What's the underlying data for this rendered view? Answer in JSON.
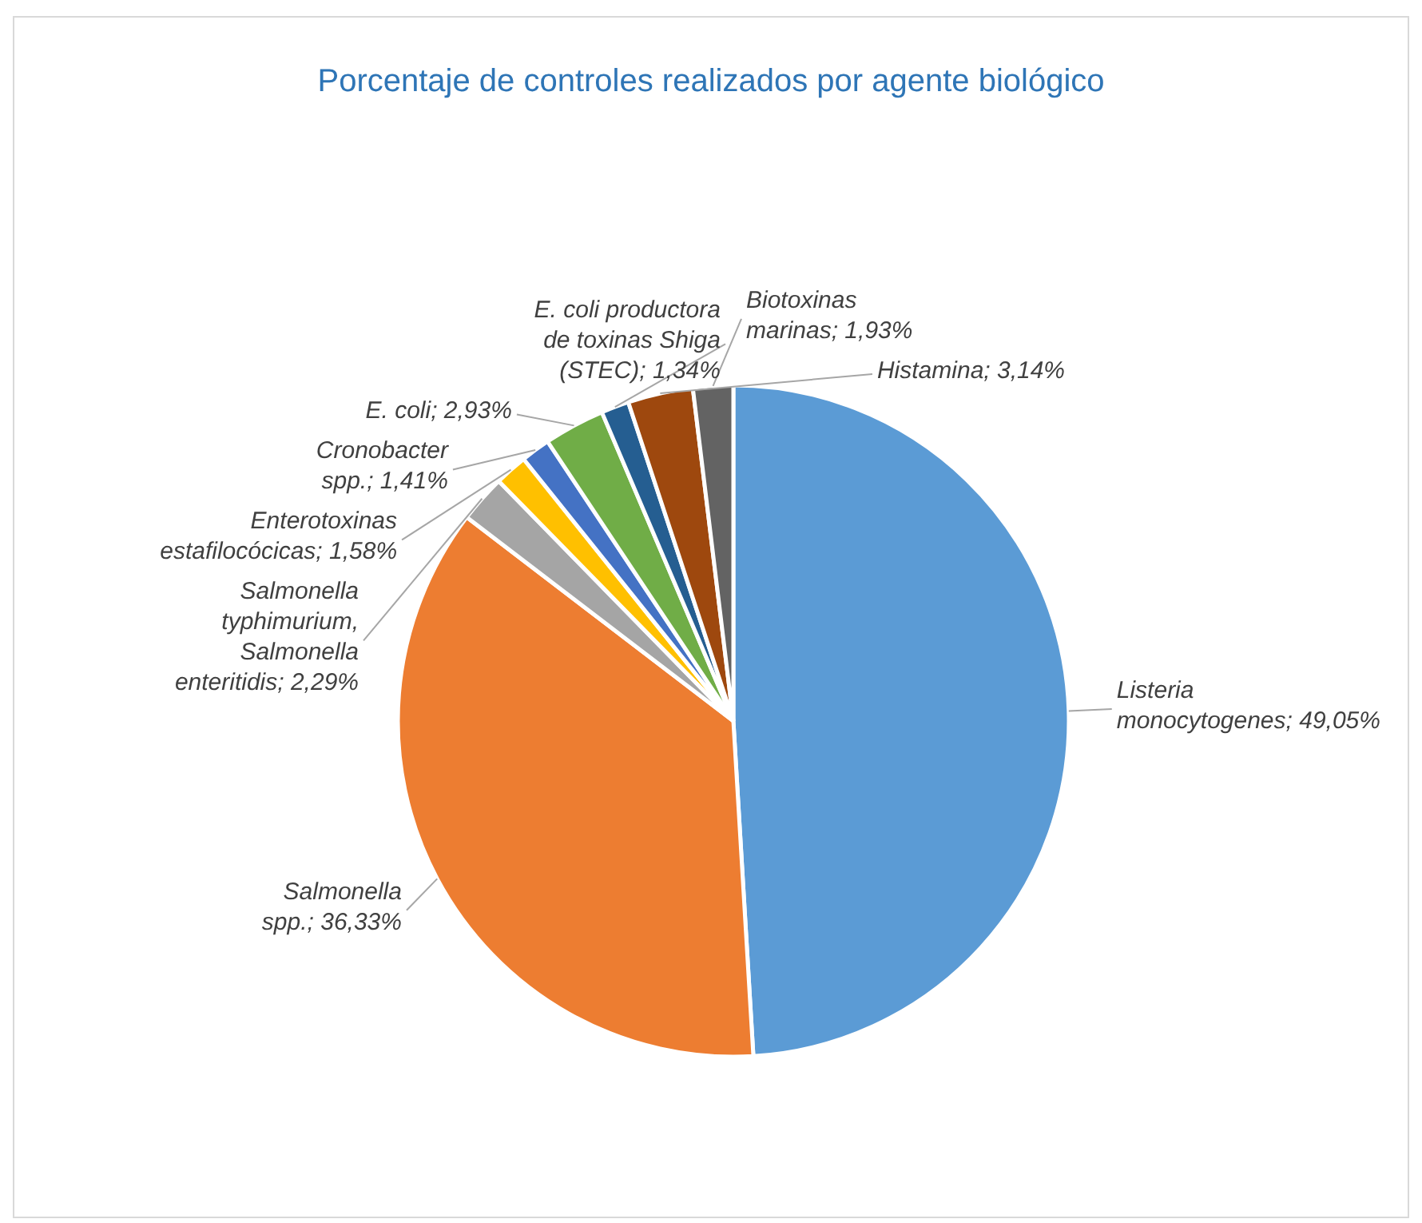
{
  "chart_data": {
    "type": "pie",
    "title": "Porcentaje de controles realizados por agente biológico",
    "categories": [
      "Listeria monocytogenes",
      "Salmonella spp.",
      "Salmonella typhimurium, Salmonella enteritidis",
      "Enterotoxinas estafilocócicas",
      "Cronobacter spp.",
      "E. coli",
      "E. coli productora de toxinas Shiga (STEC)",
      "Histamina",
      "Biotoxinas marinas"
    ],
    "values": [
      49.05,
      36.33,
      2.29,
      1.58,
      1.41,
      2.93,
      1.34,
      3.14,
      1.93
    ],
    "value_labels": [
      "49,05%",
      "36,33%",
      "2,29%",
      "1,58%",
      "1,41%",
      "2,93%",
      "1,34%",
      "3,14%",
      "1,93%"
    ],
    "colors": [
      "#5b9bd5",
      "#ed7d31",
      "#a5a5a5",
      "#ffc000",
      "#4472c4",
      "#70ad47",
      "#255e91",
      "#9e480e",
      "#636363"
    ]
  }
}
